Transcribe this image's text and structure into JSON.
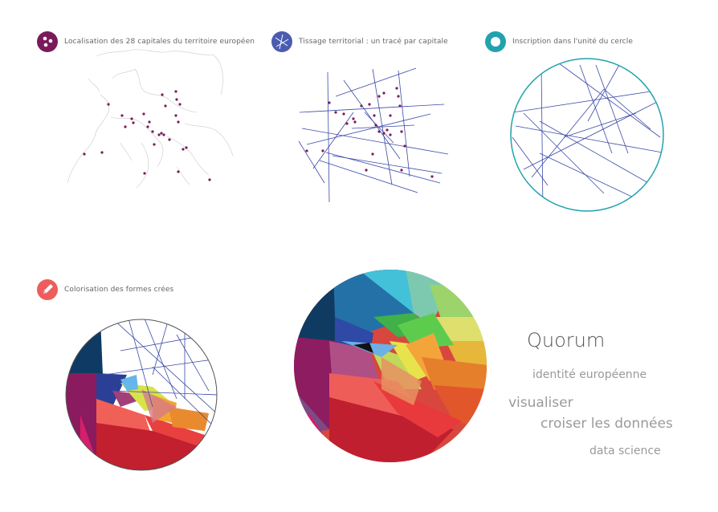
{
  "steps": [
    {
      "label": "Localisation des 28 capitales du territoire européen",
      "color": "#7b1a5b",
      "icon": "dots-icon"
    },
    {
      "label": "Tissage territorial : un tracé par capitale",
      "color": "#4a5bb0",
      "icon": "lines-icon"
    },
    {
      "label": "Inscription dans l'unité du cercle",
      "color": "#21a3ad",
      "icon": "ring-icon"
    },
    {
      "label": "Colorisation des formes crées",
      "color": "#ee5c5c",
      "icon": "pencil-icon"
    }
  ],
  "brand": {
    "title": "Quorum",
    "line1": "identité européenne",
    "line2": "visualiser",
    "line3": "croiser les données",
    "line4": "data science"
  },
  "colors": {
    "capital_dot": "#7b1a5b",
    "line": "#3a4aa8",
    "circle": "#21a3ad",
    "outline": "#555555"
  }
}
